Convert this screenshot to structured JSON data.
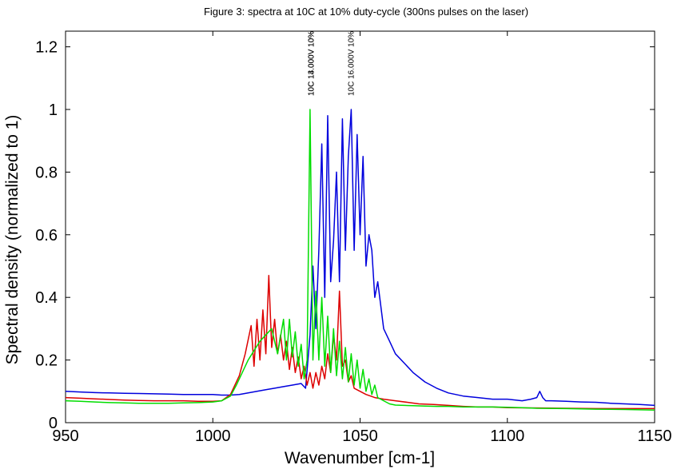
{
  "chart_data": {
    "type": "line",
    "title": "Figure 3: spectra at 10C at 10% duty-cycle (300ns pulses on the laser)",
    "xlabel": "Wavenumber [cm-1]",
    "ylabel": "Spectral density (normalized to 1)",
    "xlim": [
      950,
      1150
    ],
    "ylim": [
      0,
      1.25
    ],
    "xticks": [
      950,
      1000,
      1050,
      1100,
      1150
    ],
    "xtick_labels": [
      "950",
      "1000",
      "1050",
      "1100",
      "1150"
    ],
    "yticks": [
      0,
      0.2,
      0.4,
      0.6,
      0.8,
      1,
      1.2
    ],
    "ytick_labels": [
      "0",
      "0.2",
      "0.4",
      "0.6",
      "0.8",
      "1",
      "1.2"
    ],
    "grid": false,
    "annotations": [
      {
        "text": "10C 14.000V 10%",
        "x": 1033.5
      },
      {
        "text": "10C 13.000V 10%",
        "x": 1033.5
      },
      {
        "text": "10C 16.000V 10%",
        "x": 1047
      }
    ],
    "series": [
      {
        "color": "#0000dd",
        "x": [
          950,
          955,
          960,
          965,
          970,
          975,
          980,
          985,
          990,
          995,
          1000,
          1003,
          1006,
          1009,
          1012,
          1015,
          1018,
          1021,
          1024,
          1027,
          1030,
          1031.5,
          1033,
          1034,
          1035,
          1036,
          1037,
          1038,
          1039,
          1040,
          1041,
          1042,
          1043,
          1044,
          1045,
          1046,
          1047,
          1048,
          1049,
          1050,
          1051,
          1052,
          1053,
          1054,
          1055,
          1056,
          1058,
          1060,
          1062,
          1065,
          1068,
          1072,
          1076,
          1080,
          1085,
          1090,
          1095,
          1100,
          1105,
          1108,
          1110,
          1111,
          1112,
          1113,
          1115,
          1120,
          1125,
          1130,
          1135,
          1140,
          1145,
          1150
        ],
        "y": [
          0.1,
          0.098,
          0.096,
          0.095,
          0.094,
          0.093,
          0.092,
          0.091,
          0.09,
          0.09,
          0.09,
          0.088,
          0.088,
          0.09,
          0.095,
          0.1,
          0.105,
          0.11,
          0.115,
          0.12,
          0.125,
          0.11,
          0.28,
          0.5,
          0.3,
          0.55,
          0.89,
          0.4,
          0.98,
          0.45,
          0.58,
          0.8,
          0.45,
          0.97,
          0.55,
          0.85,
          1.0,
          0.55,
          0.92,
          0.6,
          0.85,
          0.5,
          0.6,
          0.55,
          0.4,
          0.45,
          0.3,
          0.26,
          0.22,
          0.19,
          0.16,
          0.13,
          0.11,
          0.095,
          0.085,
          0.08,
          0.075,
          0.075,
          0.07,
          0.075,
          0.08,
          0.1,
          0.08,
          0.07,
          0.07,
          0.068,
          0.066,
          0.065,
          0.062,
          0.06,
          0.058,
          0.055
        ]
      },
      {
        "color": "#dd0000",
        "x": [
          950,
          955,
          960,
          965,
          970,
          975,
          980,
          985,
          990,
          995,
          1000,
          1003,
          1006,
          1009,
          1011,
          1013,
          1014,
          1015,
          1016,
          1017,
          1018,
          1019,
          1020,
          1021,
          1022,
          1023,
          1024,
          1025,
          1026,
          1027,
          1028,
          1029,
          1030,
          1031,
          1032,
          1033,
          1034,
          1035,
          1036,
          1037,
          1038,
          1039,
          1040,
          1041,
          1042,
          1043,
          1044,
          1045,
          1046,
          1047,
          1048,
          1050,
          1052,
          1055,
          1058,
          1062,
          1066,
          1070,
          1075,
          1080,
          1085,
          1090,
          1095,
          1100,
          1110,
          1120,
          1130,
          1140,
          1150
        ],
        "y": [
          0.08,
          0.078,
          0.076,
          0.074,
          0.072,
          0.071,
          0.07,
          0.07,
          0.07,
          0.068,
          0.068,
          0.07,
          0.09,
          0.15,
          0.22,
          0.31,
          0.18,
          0.33,
          0.2,
          0.36,
          0.22,
          0.47,
          0.24,
          0.33,
          0.22,
          0.28,
          0.2,
          0.26,
          0.17,
          0.24,
          0.16,
          0.21,
          0.14,
          0.18,
          0.12,
          0.16,
          0.11,
          0.16,
          0.12,
          0.18,
          0.14,
          0.22,
          0.16,
          0.28,
          0.2,
          0.42,
          0.18,
          0.2,
          0.13,
          0.15,
          0.11,
          0.1,
          0.09,
          0.08,
          0.075,
          0.07,
          0.065,
          0.06,
          0.058,
          0.055,
          0.052,
          0.05,
          0.05,
          0.048,
          0.047,
          0.046,
          0.045,
          0.045,
          0.045
        ]
      },
      {
        "color": "#00dd00",
        "x": [
          950,
          955,
          960,
          965,
          970,
          975,
          980,
          985,
          990,
          995,
          1000,
          1003,
          1006,
          1008,
          1010,
          1012,
          1014,
          1016,
          1018,
          1020,
          1022,
          1024,
          1025,
          1026,
          1027,
          1028,
          1029,
          1030,
          1031,
          1032,
          1033,
          1034,
          1035,
          1036,
          1037,
          1038,
          1039,
          1040,
          1041,
          1042,
          1043,
          1044,
          1045,
          1046,
          1047,
          1048,
          1049,
          1050,
          1051,
          1052,
          1053,
          1054,
          1055,
          1056,
          1058,
          1060,
          1062,
          1065,
          1068,
          1072,
          1076,
          1080,
          1085,
          1090,
          1095,
          1100,
          1105,
          1110,
          1120,
          1130,
          1140,
          1150
        ],
        "y": [
          0.07,
          0.068,
          0.066,
          0.064,
          0.063,
          0.062,
          0.062,
          0.062,
          0.063,
          0.064,
          0.066,
          0.07,
          0.085,
          0.12,
          0.16,
          0.2,
          0.23,
          0.26,
          0.28,
          0.3,
          0.22,
          0.33,
          0.2,
          0.33,
          0.21,
          0.29,
          0.18,
          0.25,
          0.14,
          0.2,
          1.0,
          0.2,
          0.42,
          0.2,
          0.4,
          0.18,
          0.34,
          0.16,
          0.3,
          0.15,
          0.26,
          0.14,
          0.24,
          0.13,
          0.22,
          0.12,
          0.2,
          0.11,
          0.17,
          0.1,
          0.14,
          0.09,
          0.12,
          0.08,
          0.07,
          0.06,
          0.056,
          0.055,
          0.054,
          0.053,
          0.052,
          0.052,
          0.05,
          0.05,
          0.05,
          0.049,
          0.048,
          0.046,
          0.045,
          0.043,
          0.042,
          0.04
        ]
      }
    ]
  }
}
